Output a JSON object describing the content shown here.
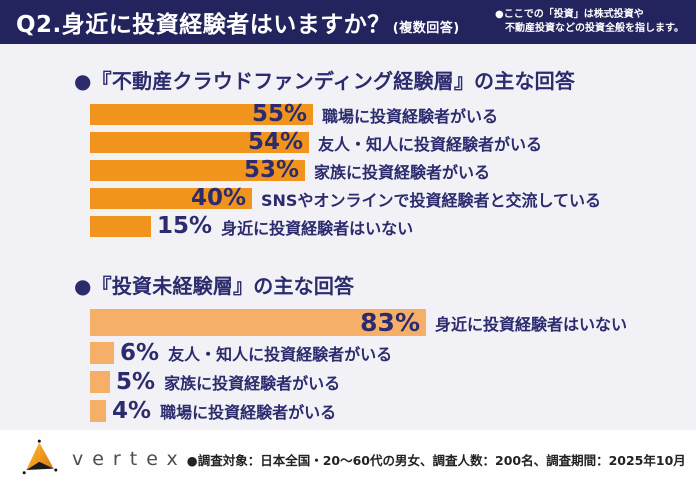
{
  "header": {
    "title": "Q2.身近に投資経験者はいますか？",
    "title_suffix": "(複数回答)",
    "note_line1": "●ここでの「投資」は株式投資や",
    "note_line2": "　不動産投資などの投資全般を指します。"
  },
  "chart_data": [
    {
      "type": "bar",
      "orientation": "horizontal",
      "title": "●『不動産クラウドファンディング経験層』の主な回答",
      "bar_color": "#F0941E",
      "categories": [
        "職場に投資経験者がいる",
        "友人・知人に投資経験者がいる",
        "家族に投資経験者がいる",
        "SNSやオンラインで投資経験者と交流している",
        "身近に投資経験者はいない"
      ],
      "values": [
        55,
        54,
        53,
        40,
        15
      ],
      "value_labels": [
        "55%",
        "54%",
        "53%",
        "40%",
        "15%"
      ],
      "value_label_inside": [
        true,
        true,
        true,
        true,
        false
      ],
      "unit": "%",
      "xlim": [
        0,
        100
      ],
      "grid": false,
      "legend": false
    },
    {
      "type": "bar",
      "orientation": "horizontal",
      "title": "●『投資未経験層』の主な回答",
      "bar_color": "#F5AF68",
      "categories": [
        "身近に投資経験者はいない",
        "友人・知人に投資経験者がいる",
        "家族に投資経験者がいる",
        "職場に投資経験者がいる"
      ],
      "values": [
        83,
        6,
        5,
        4
      ],
      "value_labels": [
        "83%",
        "6%",
        "5%",
        "4%"
      ],
      "value_label_inside": [
        true,
        false,
        false,
        false
      ],
      "unit": "%",
      "xlim": [
        0,
        100
      ],
      "grid": false,
      "legend": false
    }
  ],
  "footer": {
    "logo_text": "vertex",
    "survey_info": "●調査対象：日本全国・20～60代の男女、調査人数：200名、調査期間：2025年10月"
  },
  "colors": {
    "header_bg": "#23235E",
    "content_bg": "#F1F1F6",
    "footer_bg": "#FEFEFE",
    "navy_text": "#2B2B6E",
    "bar_orange": "#F0941E",
    "bar_light_orange": "#F5AF68",
    "logo_orange": "#F5A623"
  }
}
